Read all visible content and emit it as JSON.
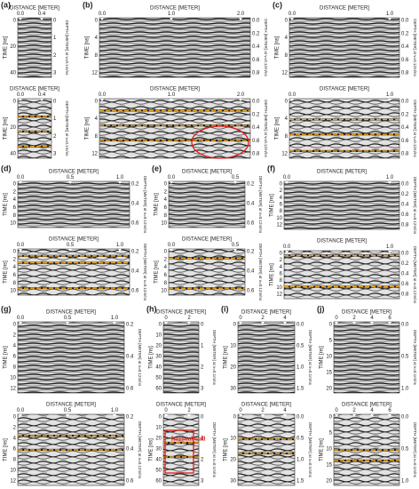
{
  "panels": [
    {
      "label": "(a)",
      "plots": [
        {
          "x_title": "DISTANCE [METER]",
          "x_ticks": [
            "0.0",
            "0.4"
          ],
          "y_title": "TIME [ns]",
          "y_ticks": [
            "0",
            "20",
            "40"
          ],
          "y2_title": "DEPTH [METER] at v=0.1m/ns",
          "y2_ticks": [
            "0",
            "1",
            "2",
            "3"
          ]
        },
        {
          "x_title": "DISTANCE [METER]",
          "x_ticks": [
            "0.0",
            "0.4"
          ],
          "y_title": "TIME [ns]",
          "y_ticks": [
            "0",
            "20",
            "40"
          ],
          "y2_title": "DEPTH [METER] at v=0.1m/ns",
          "y2_ticks": [
            "0",
            "1",
            "2",
            "3"
          ]
        }
      ]
    },
    {
      "label": "(b)",
      "plots": [
        {
          "x_title": "DISTANCE [METER]",
          "x_ticks": [
            "0.0",
            "1.0",
            "2.0"
          ],
          "y_title": "TIME [ns]",
          "y_ticks": [
            "0",
            "4",
            "8",
            "12"
          ],
          "y2_title": "DEPTH [METER] at v=0.12m/ns",
          "y2_ticks": [
            "0.0",
            "0.2",
            "0.4",
            "0.6",
            "0.8"
          ]
        },
        {
          "x_title": "DISTANCE [METER]",
          "x_ticks": [
            "0.0",
            "1.0",
            "2.0"
          ],
          "y_title": "TIME [ns]",
          "y_ticks": [
            "0",
            "4",
            "8",
            "12"
          ],
          "y2_title": "DEPTH [METER] at v=0.12m/ns",
          "y2_ticks": [
            "0.0",
            "0.2",
            "0.4",
            "0.6",
            "0.8"
          ]
        }
      ]
    },
    {
      "label": "(c)",
      "plots": [
        {
          "x_title": "DISTANCE [METER]",
          "x_ticks": [
            "0.0",
            "1.0"
          ],
          "y_title": "TIME [ns]",
          "y_ticks": [
            "0",
            "4",
            "8",
            "12"
          ],
          "y2_title": "DEPTH [METER] at v=0.12m/ns",
          "y2_ticks": [
            "0.0",
            "0.2",
            "0.4",
            "0.6",
            "0.8"
          ]
        },
        {
          "x_title": "DISTANCE [METER]",
          "x_ticks": [
            "0.0",
            "1.0"
          ],
          "y_title": "TIME [ns]",
          "y_ticks": [
            "0",
            "4",
            "8",
            "12"
          ],
          "y2_title": "DEPTH [METER] at v=0.12m/ns",
          "y2_ticks": [
            "0.0",
            "0.2",
            "0.4",
            "0.6",
            "0.8"
          ]
        }
      ]
    },
    {
      "label": "(d)",
      "plots": [
        {
          "x_title": "DISTANCE [METER]",
          "x_ticks": [
            "0.0",
            "0.5",
            "1.0"
          ],
          "y_title": "TIME [ns]",
          "y_ticks": [
            "0",
            "2",
            "4",
            "6",
            "8",
            "10"
          ],
          "y2_title": "DEPTH [METER] at v=0.12m/ns",
          "y2_ticks": [
            "0.2",
            "0.4",
            "0.6"
          ]
        },
        {
          "x_title": "DISTANCE [METER]",
          "x_ticks": [
            "0.0",
            "0.5",
            "1.0"
          ],
          "y_title": "TIME [ns]",
          "y_ticks": [
            "0",
            "2",
            "4",
            "6",
            "8",
            "10"
          ],
          "y2_title": "DEPTH [METER] at v=0.12m/ns",
          "y2_ticks": [
            "0.2",
            "0.4",
            "0.6"
          ]
        }
      ]
    },
    {
      "label": "(e)",
      "plots": [
        {
          "x_title": "DISTANCE [METER]",
          "x_ticks": [
            "0.0",
            "0.5"
          ],
          "y_title": "TIME [ns]",
          "y_ticks": [
            "0",
            "2",
            "4",
            "6",
            "8",
            "10"
          ],
          "y2_title": "DEPTH [METER] at v=0.12m/ns",
          "y2_ticks": [
            "0.2",
            "0.4",
            "0.6"
          ]
        },
        {
          "x_title": "DISTANCE [METER]",
          "x_ticks": [
            "0.0",
            "0.5"
          ],
          "y_title": "TIME [ns]",
          "y_ticks": [
            "0",
            "2",
            "4",
            "6",
            "8",
            "10"
          ],
          "y2_title": "DEPTH [METER] at v=0.12m/ns",
          "y2_ticks": [
            "0.2",
            "0.4",
            "0.6"
          ]
        }
      ]
    },
    {
      "label": "(f)",
      "plots": [
        {
          "x_title": "DISTANCE [METER]",
          "x_ticks": [
            "0.0",
            "1.0"
          ],
          "y_title": "TIME [ns]",
          "y_ticks": [
            "0",
            "2",
            "4",
            "6",
            "8",
            "10",
            "12"
          ],
          "y2_title": "DEPTH [METER] at v=0.12m/ns",
          "y2_ticks": [
            "0.0",
            "0.2",
            "0.4",
            "0.6",
            "0.8"
          ]
        },
        {
          "x_title": "DISTANCE [METER]",
          "x_ticks": [
            "0.0",
            "1.0"
          ],
          "y_title": "TIME [ns]",
          "y_ticks": [
            "0",
            "2",
            "4",
            "6",
            "8",
            "10",
            "12"
          ],
          "y2_title": "DEPTH [METER] at v=0.12m/ns",
          "y2_ticks": [
            "0.0",
            "0.2",
            "0.4",
            "0.6",
            "0.8"
          ]
        }
      ]
    },
    {
      "label": "(g)",
      "plots": [
        {
          "x_title": "DISTANCE [METER]",
          "x_ticks": [
            "0.0",
            "0.5",
            "1.0"
          ],
          "y_title": "TIME [ns]",
          "y_ticks": [
            "0",
            "2",
            "4",
            "6",
            "8",
            "10",
            "12"
          ],
          "y2_title": "DEPTH [METER] at v=0.12m/ns",
          "y2_ticks": [
            "0.2",
            "0.4",
            "0.6"
          ]
        },
        {
          "x_title": "DISTANCE [METER]",
          "x_ticks": [
            "0.0",
            "0.5",
            "1.0"
          ],
          "y_title": "TIME [ns]",
          "y_ticks": [
            "0",
            "2",
            "4",
            "6",
            "8",
            "10",
            "12"
          ],
          "y2_title": "DEPTH [METER] at v=0.12m/ns",
          "y2_ticks": [
            "0.2",
            "0.4",
            "0.6"
          ]
        }
      ]
    },
    {
      "label": "(h)",
      "plots": [
        {
          "x_title": "DISTANCE [METER]",
          "x_ticks": [
            "0",
            "2"
          ],
          "y_title": "TIME [ns]",
          "y_ticks": [
            "0",
            "10",
            "20",
            "30",
            "40",
            "50",
            "60"
          ],
          "y2_title": "DEPTH [METER] at v=0.1m/ns",
          "y2_ticks": [
            "0",
            "1",
            "2",
            "3"
          ]
        },
        {
          "x_title": "DISTANCE [METER]",
          "x_ticks": [
            "0",
            "2"
          ],
          "y_title": "TIME [ns]",
          "y_ticks": [
            "0",
            "10",
            "20",
            "30",
            "40",
            "50",
            "60"
          ],
          "y2_title": "DEPTH [METER] at v=0.1m/ns",
          "y2_ticks": [
            "0",
            "1",
            "2",
            "3"
          ]
        }
      ]
    },
    {
      "label": "(i)",
      "plots": [
        {
          "x_title": "DISTANCE [METER]",
          "x_ticks": [
            "0",
            "2",
            "4"
          ],
          "y_title": "TIME [ns]",
          "y_ticks": [
            "0",
            "10",
            "20",
            "30"
          ],
          "y2_title": "DEPTH [METER] at v=0.1m/ns",
          "y2_ticks": [
            "0.0",
            "0.5",
            "1.0",
            "1.5"
          ]
        },
        {
          "x_title": "DISTANCE [METER]",
          "x_ticks": [
            "0",
            "2",
            "4"
          ],
          "y_title": "TIME [ns]",
          "y_ticks": [
            "0",
            "10",
            "20",
            "30"
          ],
          "y2_title": "DEPTH [METER] at v=0.1m/ns",
          "y2_ticks": [
            "0.0",
            "0.5",
            "1.0",
            "1.5"
          ]
        }
      ]
    },
    {
      "label": "(j)",
      "plots": [
        {
          "x_title": "DISTANCE [METER]",
          "x_ticks": [
            "0",
            "2",
            "4",
            "6"
          ],
          "y_title": "TIME [ns]",
          "y_ticks": [
            "0",
            "5",
            "10",
            "15",
            "20"
          ],
          "y2_title": "DEPTH [METER] at v=0.1m/ns",
          "y2_ticks": [
            "0.0",
            "0.5",
            "1.0"
          ]
        },
        {
          "x_title": "DISTANCE [METER]",
          "x_ticks": [
            "0",
            "2",
            "4",
            "6"
          ],
          "y_title": "TIME [ns]",
          "y_ticks": [
            "0",
            "5",
            "10",
            "15",
            "20"
          ],
          "y2_title": "DEPTH [METER] at v=0.1m/ns",
          "y2_ticks": [
            "0.0",
            "0.5",
            "1.0"
          ]
        }
      ]
    }
  ],
  "annotation": "Internal wall"
}
